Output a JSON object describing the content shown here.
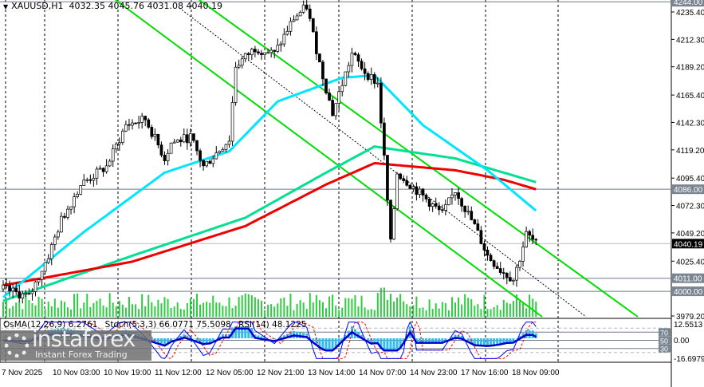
{
  "header": {
    "symbol": "XAUUSD,H1",
    "ohlc": "4032.35 4045.76 4031.08 4040.19"
  },
  "indicators": {
    "osma": "OsMA(12,26,9) 6.2761",
    "stoch": "Stoch(5,3,3) 66.0771 75.5098",
    "rsi": "RSI(14) 48.1225"
  },
  "logo": {
    "name": "instaforex",
    "tagline": "Instant Forex Trading"
  },
  "colors": {
    "up": "#00a000",
    "ma_fast": "#00e5ff",
    "ma_mid": "#00e090",
    "ma_slow": "#ee0000",
    "channel": "#00dd00",
    "volume": "#2ecc40",
    "osma": "#33bbee",
    "rsi": "#0000cc",
    "stoch_main": "#0000ff",
    "stoch_signal": "#ff0000",
    "level_line": "#6e7b8b"
  },
  "chart_data": {
    "type": "candlestick",
    "symbol": "XAUUSD",
    "timeframe": "H1",
    "y_ticks": [
      4235.4,
      4212.3,
      4189.2,
      4165.4,
      4142.3,
      4119.2,
      4095.4,
      4072.3,
      4049.2,
      4025.4,
      3979.2
    ],
    "ylim": [
      3979.2,
      4250
    ],
    "x_ticks": [
      "7 Nov 2025",
      "10 Nov 03:00",
      "10 Nov 19:00",
      "11 Nov 12:00",
      "12 Nov 05:00",
      "12 Nov 21:00",
      "13 Nov 14:00",
      "14 Nov 07:00",
      "14 Nov 23:00",
      "17 Nov 16:00",
      "18 Nov 09:00"
    ],
    "levels": [
      {
        "price": "4244.00"
      },
      {
        "price": "4086.00"
      },
      {
        "price": "4011.00"
      },
      {
        "price": "4000.00"
      }
    ],
    "current_price": "4040.19",
    "price_path": [
      [
        0,
        4002
      ],
      [
        8,
        3995
      ],
      [
        14,
        4030
      ],
      [
        18,
        4060
      ],
      [
        24,
        4090
      ],
      [
        32,
        4105
      ],
      [
        38,
        4140
      ],
      [
        44,
        4145
      ],
      [
        50,
        4112
      ],
      [
        52,
        4125
      ],
      [
        58,
        4130
      ],
      [
        62,
        4105
      ],
      [
        70,
        4128
      ],
      [
        72,
        4190
      ],
      [
        78,
        4205
      ],
      [
        84,
        4200
      ],
      [
        90,
        4230
      ],
      [
        94,
        4240
      ],
      [
        98,
        4192
      ],
      [
        102,
        4150
      ],
      [
        108,
        4200
      ],
      [
        112,
        4185
      ],
      [
        116,
        4175
      ],
      [
        118,
        4112
      ],
      [
        120,
        4040
      ],
      [
        122,
        4100
      ],
      [
        130,
        4080
      ],
      [
        136,
        4065
      ],
      [
        140,
        4085
      ],
      [
        146,
        4055
      ],
      [
        150,
        4030
      ],
      [
        154,
        4018
      ],
      [
        158,
        4010
      ],
      [
        160,
        4028
      ],
      [
        162,
        4048
      ],
      [
        165,
        4040
      ]
    ],
    "ma_fast_path": [
      [
        0,
        3995
      ],
      [
        25,
        4050
      ],
      [
        50,
        4100
      ],
      [
        70,
        4118
      ],
      [
        85,
        4160
      ],
      [
        105,
        4180
      ],
      [
        115,
        4182
      ],
      [
        130,
        4140
      ],
      [
        150,
        4102
      ],
      [
        165,
        4068
      ]
    ],
    "ma_mid_path": [
      [
        0,
        3992
      ],
      [
        40,
        4030
      ],
      [
        75,
        4062
      ],
      [
        100,
        4100
      ],
      [
        115,
        4122
      ],
      [
        140,
        4112
      ],
      [
        155,
        4100
      ],
      [
        165,
        4092
      ]
    ],
    "ma_slow_path": [
      [
        0,
        4005
      ],
      [
        40,
        4025
      ],
      [
        75,
        4055
      ],
      [
        100,
        4090
      ],
      [
        115,
        4108
      ],
      [
        140,
        4102
      ],
      [
        155,
        4094
      ],
      [
        165,
        4086
      ]
    ],
    "indicator_levels": {
      "stoch": [
        80,
        20
      ],
      "rsi": [
        70,
        50,
        30
      ],
      "osma_range": [
        "12.5513",
        "0.00",
        "-16.6979"
      ]
    }
  }
}
